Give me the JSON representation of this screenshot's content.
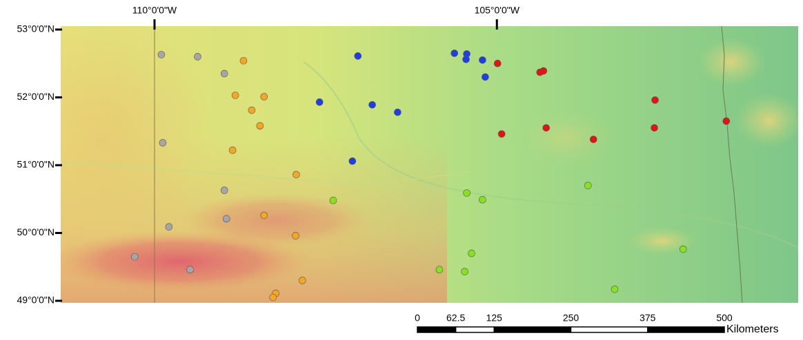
{
  "map": {
    "xlim": [
      -111.37,
      -100.6
    ],
    "ylim": [
      48.97,
      53.05
    ],
    "xticks": [
      {
        "value": -110,
        "label": "110°0'0\"W"
      },
      {
        "value": -105,
        "label": "105°0'0\"W"
      }
    ],
    "yticks": [
      {
        "value": 53,
        "label": "53°0'0\"N"
      },
      {
        "value": 52,
        "label": "52°0'0\"N"
      },
      {
        "value": 51,
        "label": "51°0'0\"N"
      },
      {
        "value": 50,
        "label": "50°0'0\"N"
      },
      {
        "value": 49,
        "label": "49°0'0\"N"
      }
    ],
    "series": [
      {
        "color": "#a6a6a6",
        "x": [
          -109.9,
          -109.37,
          -108.98,
          -109.88,
          -108.98,
          -108.95,
          -109.79,
          -110.29,
          -109.48
        ],
        "y": [
          52.63,
          52.6,
          52.35,
          51.33,
          50.63,
          50.21,
          50.09,
          49.65,
          49.46
        ]
      },
      {
        "color": "#f5a623",
        "x": [
          -108.7,
          -108.82,
          -108.4,
          -108.58,
          -108.46,
          -108.86,
          -107.93,
          -108.4,
          -107.94,
          -107.84,
          -108.23,
          -108.27
        ],
        "y": [
          52.54,
          52.03,
          52.01,
          51.81,
          51.58,
          51.22,
          50.86,
          50.26,
          49.96,
          49.3,
          49.11,
          49.05
        ]
      },
      {
        "color": "#1e3fe6",
        "x": [
          -107.03,
          -107.59,
          -106.82,
          -106.45,
          -107.11,
          -105.62,
          -105.44,
          -105.45,
          -105.21,
          -105.17
        ],
        "y": [
          52.61,
          51.93,
          51.89,
          51.78,
          51.06,
          52.65,
          52.64,
          52.56,
          52.55,
          52.3
        ]
      },
      {
        "color": "#e31414",
        "x": [
          -104.99,
          -104.37,
          -104.32,
          -104.93,
          -104.28,
          -103.59,
          -102.69,
          -102.7,
          -101.65
        ],
        "y": [
          52.5,
          52.37,
          52.39,
          51.46,
          51.55,
          51.38,
          51.96,
          51.55,
          51.65
        ]
      },
      {
        "color": "#84e21e",
        "x": [
          -107.39,
          -105.44,
          -105.21,
          -103.67,
          -105.37,
          -105.84,
          -105.47,
          -103.28,
          -102.28
        ],
        "y": [
          50.48,
          50.59,
          50.49,
          50.7,
          49.7,
          49.46,
          49.43,
          49.17,
          49.76
        ]
      }
    ],
    "scalebar": {
      "ticks": [
        0,
        62.5,
        125,
        250,
        375,
        500
      ],
      "unit": "Kilometers"
    }
  }
}
